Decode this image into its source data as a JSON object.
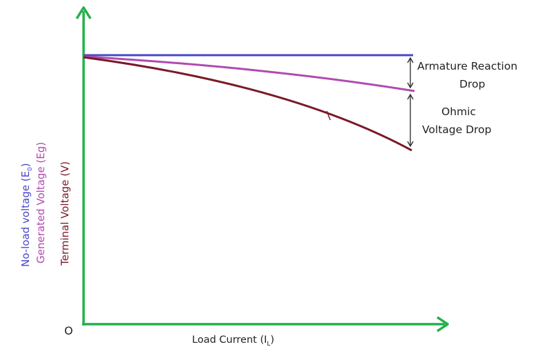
{
  "origin_label": "O",
  "x_axis": {
    "label": "Load Current (I",
    "label_sub": "L",
    "label_end": ")"
  },
  "y_labels": {
    "no_load": {
      "text": "No-load voltage (E",
      "sub": "0",
      "end": ")",
      "color": "#4848c8"
    },
    "generated": {
      "text": "Generated Voltage (Eg)",
      "color": "#b04ab0"
    },
    "terminal": {
      "text": "Terminal Voltage (V)",
      "color": "#7a1a26"
    }
  },
  "annotations": {
    "armature": {
      "line1": "Armature Reaction",
      "line2": "Drop"
    },
    "ohmic": {
      "line1": "Ohmic",
      "line2": "Voltage Drop"
    }
  },
  "colors": {
    "axis": "#22b04a",
    "no_load_curve": "#4848c8",
    "generated_curve": "#b04ab0",
    "terminal_curve": "#7a1a26",
    "arrow": "#222222"
  }
}
